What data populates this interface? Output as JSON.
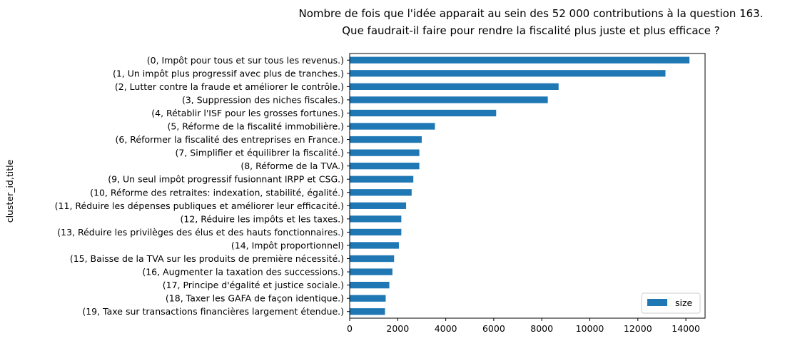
{
  "chart_data": {
    "type": "bar",
    "orientation": "horizontal",
    "title": [
      "Nombre de fois que l'idée apparait au sein des 52 000 contributions à la question 163.",
      "Que faudrait-il faire pour rendre la fiscalité plus juste et plus efficace ?"
    ],
    "ylabel": "cluster_id,title",
    "xlabel": "",
    "xlim": [
      0,
      14800
    ],
    "xticks": [
      0,
      2000,
      4000,
      6000,
      8000,
      10000,
      12000,
      14000
    ],
    "categories": [
      "(0, Impôt pour tous et sur tous les revenus.)",
      "(1, Un impôt plus progressif avec plus de tranches.)",
      "(2, Lutter contre la fraude et améliorer le contrôle.)",
      "(3, Suppression des niches fiscales.)",
      "(4, Rétablir l'ISF pour les grosses fortunes.)",
      "(5, Réforme de la fiscalité immobilière.)",
      "(6, Réformer la fiscalité des entreprises en France.)",
      "(7, Simplifier et équilibrer la fiscalité.)",
      "(8, Réforme de la TVA.)",
      "(9, Un seul impôt progressif fusionnant IRPP et CSG.)",
      "(10, Réforme des retraites: indexation, stabilité, égalité.)",
      "(11, Réduire les dépenses publiques et améliorer leur efficacité.)",
      "(12, Réduire les impôts et les taxes.)",
      "(13, Réduire les privilèges des élus et des hauts fonctionnaires.)",
      "(14, Impôt proportionnel)",
      "(15, Baisse de la TVA sur les produits de première nécessité.)",
      "(16, Augmenter la taxation des successions.)",
      "(17, Principe d'égalité et justice sociale.)",
      "(18, Taxer les GAFA de façon identique.)",
      "(19, Taxe sur transactions financières largement étendue.)"
    ],
    "series": [
      {
        "name": "size",
        "color": "#1f77b4",
        "values": [
          14150,
          13150,
          8700,
          8250,
          6100,
          3550,
          3000,
          2900,
          2900,
          2650,
          2580,
          2350,
          2150,
          2150,
          2050,
          1850,
          1780,
          1650,
          1500,
          1470
        ]
      }
    ],
    "legend": {
      "placement": "lower-right"
    },
    "grid": false
  }
}
